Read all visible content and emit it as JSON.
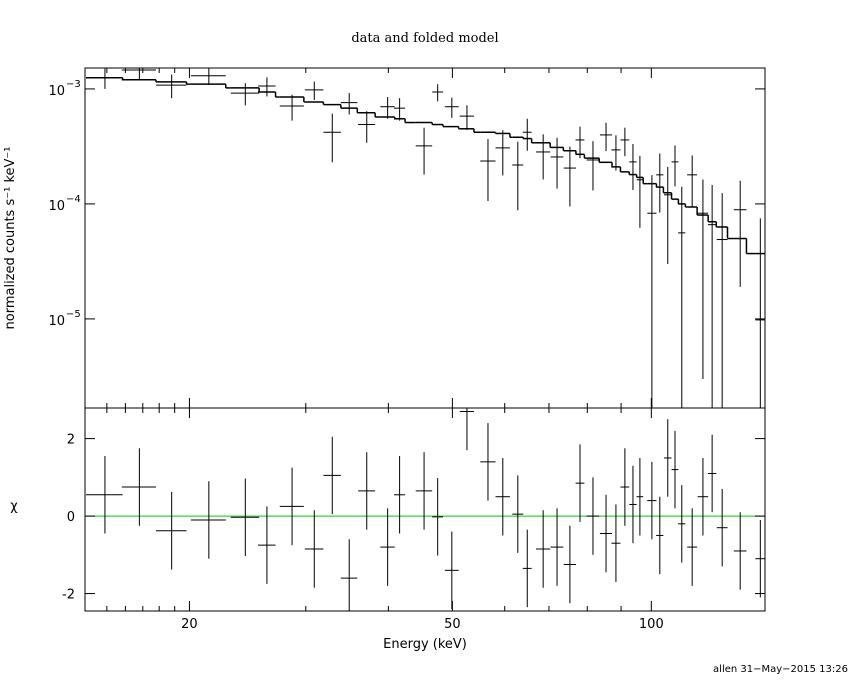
{
  "chart_data": [
    {
      "type": "errorbar",
      "title": "data and folded model",
      "ylabel": "normalized counts s⁻¹ keV⁻¹",
      "xlog": true,
      "ylog": true,
      "xlim": [
        13.9,
        148.6
      ],
      "ylim": [
        1.68e-06,
        0.00152
      ],
      "yticks": [
        {
          "value": 0.001,
          "label": "10",
          "sup": "−3"
        },
        {
          "value": 0.0001,
          "label": "10",
          "sup": "−4"
        },
        {
          "value": 1e-05,
          "label": "10",
          "sup": "−5"
        }
      ],
      "xticks": [
        20,
        50,
        100
      ],
      "xminor": [
        15,
        16,
        17,
        18,
        19,
        30,
        40,
        60,
        70,
        80,
        90
      ],
      "color": "#000000",
      "model_color": "#000000",
      "x": [
        14.9,
        16.8,
        18.8,
        21.4,
        24.3,
        26.2,
        28.6,
        30.9,
        32.9,
        34.9,
        37.1,
        39.9,
        41.6,
        45.3,
        47.5,
        49.9,
        52.6,
        56.6,
        59.6,
        62.8,
        64.9,
        68.6,
        72.0,
        75.3,
        78.0,
        81.6,
        85.4,
        88.4,
        91.2,
        93.8,
        96.1,
        100.2,
        103.0,
        105.9,
        108.6,
        111.2,
        115.3,
        119.7,
        123.6,
        128.0,
        136.3,
        146.2
      ],
      "xerr": [
        0.95,
        1.0,
        1.0,
        1.3,
        1.2,
        0.8,
        1.2,
        1.0,
        1.0,
        1.0,
        1.1,
        1.0,
        0.8,
        1.3,
        0.9,
        1.2,
        1.3,
        1.5,
        1.5,
        1.2,
        1.0,
        1.7,
        1.6,
        1.6,
        1.2,
        1.8,
        1.8,
        1.4,
        1.4,
        1.2,
        1.1,
        1.6,
        1.3,
        1.4,
        1.3,
        1.4,
        2.0,
        2.2,
        1.8,
        2.4,
        3.0,
        2.5
      ],
      "values": [
        0.00125,
        0.00146,
        0.00108,
        0.0013,
        0.00092,
        0.00106,
        0.00071,
        0.00098,
        0.00042,
        0.00076,
        0.00049,
        0.0007,
        0.00068,
        0.00032,
        0.00094,
        0.0007,
        0.00058,
        0.000236,
        0.000307,
        0.000218,
        0.00042,
        0.000283,
        0.000256,
        0.000205,
        0.00036,
        0.000241,
        0.000398,
        0.000295,
        0.00036,
        0.000232,
        0.000162,
        8.3e-05,
        0.000179,
        0.00012,
        0.000232,
        5.6e-05,
        0.000179,
        8.3e-05,
        6.6e-05,
        4.9e-05,
        8.9e-05,
        9.8e-06
      ],
      "yerr": [
        0.00025,
        0.00025,
        0.00025,
        0.00022,
        0.0002,
        0.0002,
        0.00018,
        0.00018,
        0.00019,
        0.00016,
        0.00015,
        0.00015,
        0.00015,
        0.00014,
        0.00016,
        0.00014,
        0.00014,
        0.00013,
        0.00013,
        0.00013,
        0.00013,
        0.00012,
        0.00012,
        0.00011,
        0.00011,
        0.00011,
        0.00011,
        0.0001,
        0.0001,
        0.0001,
        0.0001,
        9.5e-05,
        9.5e-05,
        9e-05,
        9e-05,
        8.5e-05,
        8.5e-05,
        8e-05,
        8e-05,
        7.5e-05,
        7e-05,
        6.5e-05
      ],
      "model": [
        0.00125,
        0.0012,
        0.00115,
        0.0011,
        0.00102,
        0.00094,
        0.00085,
        0.00077,
        0.00073,
        0.00068,
        0.00062,
        0.00057,
        0.00055,
        0.00051,
        0.00049,
        0.00047,
        0.00045,
        0.00042,
        0.00041,
        0.00038,
        0.00037,
        0.00034,
        0.00031,
        0.00029,
        0.00027,
        0.00025,
        0.00023,
        0.00021,
        0.00019,
        0.00018,
        0.00017,
        0.00015,
        0.00014,
        0.000125,
        0.00011,
        0.0001,
        9.4e-05,
        8e-05,
        7e-05,
        6.3e-05,
        5e-05,
        3.7e-05
      ]
    },
    {
      "type": "residual",
      "ylabel": "χ",
      "xlabel": "Energy (keV)",
      "xlog": true,
      "xlim": [
        13.9,
        148.6
      ],
      "ylim": [
        -2.45,
        2.79
      ],
      "yticks": [
        -2,
        0,
        2
      ],
      "xticks": [
        20,
        50,
        100
      ],
      "xminor": [
        15,
        16,
        17,
        18,
        19,
        30,
        40,
        60,
        70,
        80,
        90
      ],
      "zero_line": 0,
      "zero_color": "#00cc00",
      "color": "#000000",
      "x": [
        14.9,
        16.8,
        18.8,
        21.4,
        24.3,
        26.2,
        28.6,
        30.9,
        32.9,
        34.9,
        37.1,
        39.9,
        41.6,
        45.3,
        47.5,
        49.9,
        52.6,
        56.6,
        59.6,
        62.8,
        64.9,
        68.6,
        72.0,
        75.3,
        78.0,
        81.6,
        85.4,
        88.4,
        91.2,
        93.8,
        96.1,
        100.2,
        103.0,
        105.9,
        108.6,
        111.2,
        115.3,
        119.7,
        123.6,
        128.0,
        136.3,
        146.2
      ],
      "xerr": [
        0.95,
        1.0,
        1.0,
        1.3,
        1.2,
        0.8,
        1.2,
        1.0,
        1.0,
        1.0,
        1.1,
        1.0,
        0.8,
        1.3,
        0.9,
        1.2,
        1.3,
        1.5,
        1.5,
        1.2,
        1.0,
        1.7,
        1.6,
        1.6,
        1.2,
        1.8,
        1.8,
        1.4,
        1.4,
        1.2,
        1.1,
        1.6,
        1.3,
        1.4,
        1.3,
        1.4,
        2.0,
        2.2,
        1.8,
        2.4,
        3.0,
        2.5
      ],
      "values": [
        0.55,
        0.75,
        -0.38,
        -0.1,
        -0.03,
        -0.75,
        0.25,
        -0.85,
        1.05,
        -1.6,
        0.65,
        -0.8,
        0.55,
        0.65,
        -0.02,
        -1.4,
        2.7,
        1.4,
        0.5,
        0.05,
        -1.35,
        -0.85,
        -0.8,
        -1.25,
        0.85,
        0.0,
        -0.45,
        -0.7,
        0.75,
        0.3,
        0.5,
        0.4,
        -0.5,
        1.5,
        1.2,
        -0.2,
        -0.8,
        0.5,
        1.1,
        -0.3,
        -0.9,
        -1.1
      ],
      "yerr": [
        1,
        1,
        1,
        1,
        1,
        1,
        1,
        1,
        1,
        1,
        1,
        1,
        1,
        1,
        1,
        1,
        1,
        1,
        1,
        1,
        1,
        1,
        1,
        1,
        1,
        1,
        1,
        1,
        1,
        1,
        1,
        1,
        1,
        1,
        1,
        1,
        1,
        1,
        1,
        1,
        1,
        1
      ]
    }
  ],
  "footer": "allen 31−May−2015 13:26"
}
